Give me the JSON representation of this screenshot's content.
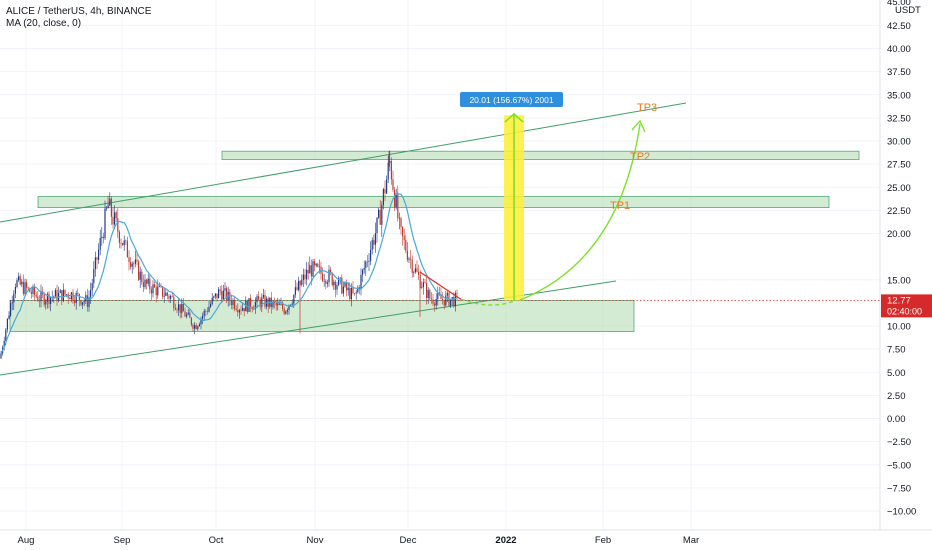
{
  "header": {
    "symbol_line": "ALICE / TetherUS, 4h, BINANCE",
    "indicator_line": "MA (20, close, 0)"
  },
  "price_axis": {
    "unit": "USDT",
    "top_partial": "45.00",
    "ticks": [
      "42.50",
      "40.00",
      "37.50",
      "35.00",
      "32.50",
      "30.00",
      "27.50",
      "25.00",
      "22.50",
      "20.00",
      "15.00",
      "10.00",
      "7.50",
      "5.00",
      "2.50",
      "0.00",
      "−2.50",
      "−5.00",
      "−7.50",
      "−10.00"
    ]
  },
  "time_axis": {
    "ticks": [
      "Aug",
      "Sep",
      "Oct",
      "Nov",
      "Dec",
      "2022",
      "Feb",
      "Mar"
    ]
  },
  "last_price": {
    "value": "12.77",
    "countdown": "02:40:00",
    "color": "#d62a2a"
  },
  "measure": {
    "label": "20.01 (156.67%) 2001",
    "from": 12.77,
    "to": 32.78,
    "color": "#2d8fde"
  },
  "targets": [
    {
      "label": "TP1",
      "zone": [
        22.8,
        24.0
      ]
    },
    {
      "label": "TP2",
      "zone": [
        28.0,
        28.9
      ]
    },
    {
      "label": "TP3",
      "price": 32.5
    }
  ],
  "support_zone": [
    9.4,
    12.77
  ],
  "colors": {
    "candle_up": "#1e3a8a",
    "candle_down": "#c0392b",
    "ma": "#4aa8d8",
    "channel": "#3f9e6a",
    "zone_fill": "#a8d5a8",
    "arrow": "#7fe02a",
    "measure_bar": "#ffee33"
  },
  "chart_data": {
    "type": "line",
    "series": [
      {
        "x": [
          "Jul 25",
          "Aug 1",
          "Aug 8",
          "Aug 15",
          "Aug 22",
          "Aug 29",
          "Sep 5",
          "Sep 12",
          "Sep 19",
          "Sep 26",
          "Oct 3",
          "Oct 10",
          "Oct 17",
          "Oct 24",
          "Oct 31",
          "Nov 7",
          "Nov 14",
          "Nov 21",
          "Nov 28",
          "Dec 2",
          "Dec 6",
          "Dec 10",
          "Dec 14"
        ],
        "y": [
          6.5,
          14.8,
          13.0,
          13.5,
          12.6,
          23.0,
          18.5,
          14.5,
          13.2,
          10.0,
          13.8,
          12.0,
          12.7,
          11.8,
          16.2,
          15.3,
          13.1,
          21.0,
          27.8,
          20.0,
          16.0,
          13.0,
          12.77
        ]
      }
    ],
    "ylim": [
      -12,
      46
    ],
    "xlim": [
      "Jul 25",
      "Mar 10"
    ]
  }
}
